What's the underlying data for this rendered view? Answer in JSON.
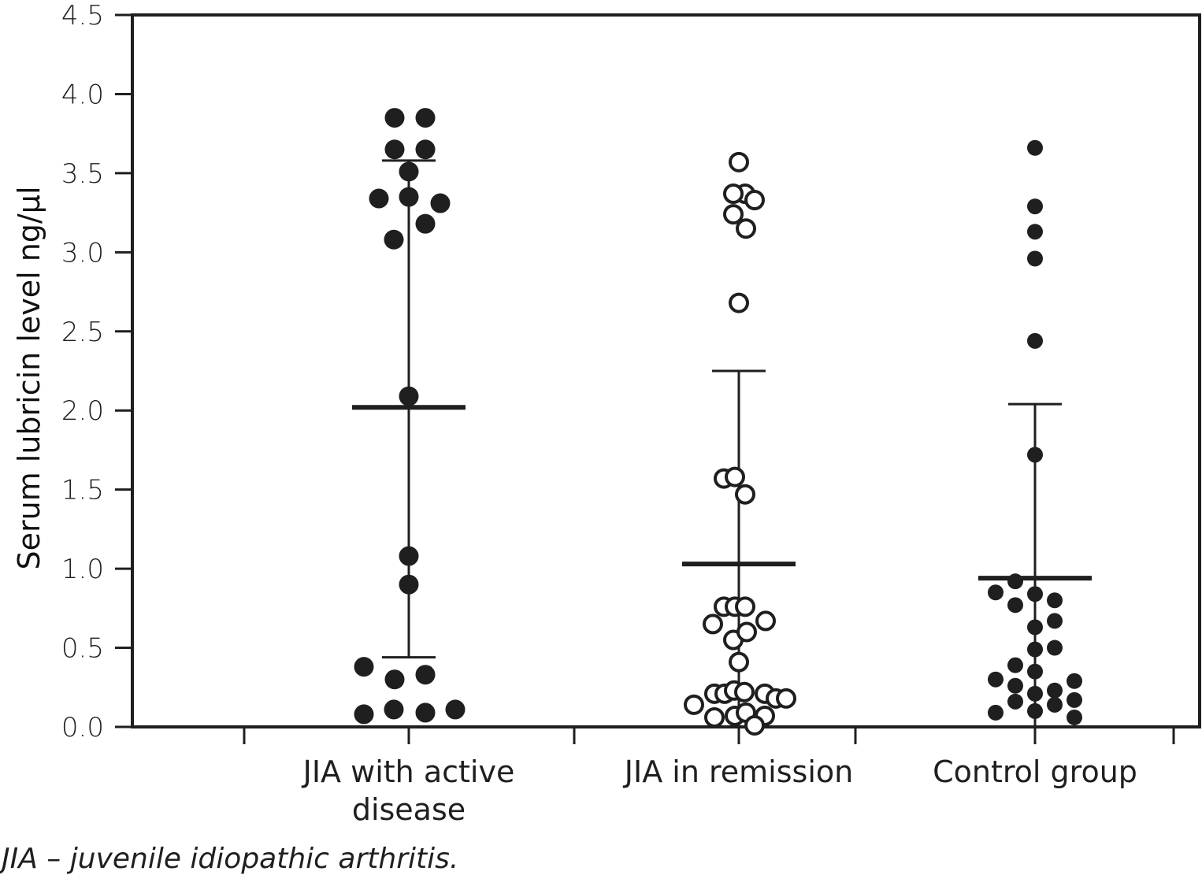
{
  "chart_data": {
    "type": "scatter",
    "subtype": "dot-plot with mean and SD bars",
    "ylabel": "Serum lubricin level ng/µl",
    "ylim": [
      0.0,
      4.5
    ],
    "yticks": [
      "0.0",
      "0.5",
      "1.0",
      "1.5",
      "2.0",
      "2.5",
      "3.0",
      "3.5",
      "4.0",
      "4.5"
    ],
    "categories": [
      "JIA with active disease",
      "JIA in remission",
      "Control group"
    ],
    "category_label_lines": [
      [
        "JIA with active",
        "disease"
      ],
      [
        "JIA in remission"
      ],
      [
        "Control group"
      ]
    ],
    "grid": false,
    "colors": {
      "ink": "#1f1f1f",
      "open_fill": "#ffffff"
    },
    "series": [
      {
        "name": "JIA with active disease",
        "marker": "filled-circle",
        "mean": 2.02,
        "sd_upper": 3.58,
        "sd_lower": 0.44,
        "values": [
          3.85,
          3.85,
          3.65,
          3.65,
          3.51,
          3.34,
          3.35,
          3.31,
          3.18,
          3.08,
          2.09,
          1.08,
          0.9,
          0.38,
          0.3,
          0.33,
          0.08,
          0.11,
          0.09,
          0.11
        ]
      },
      {
        "name": "JIA in remission",
        "marker": "open-circle",
        "mean": 1.03,
        "sd_upper": 2.25,
        "sd_lower": null,
        "values": [
          3.57,
          3.37,
          3.37,
          3.33,
          3.24,
          3.15,
          2.68,
          1.57,
          1.58,
          1.47,
          0.76,
          0.76,
          0.76,
          0.65,
          0.67,
          0.55,
          0.6,
          0.41,
          0.14,
          0.21,
          0.21,
          0.23,
          0.22,
          0.21,
          0.18,
          0.18,
          0.06,
          0.07,
          0.09,
          0.07,
          0.01
        ]
      },
      {
        "name": "Control group",
        "marker": "filled-circle",
        "mean": 0.94,
        "sd_upper": 2.04,
        "sd_lower": null,
        "values": [
          3.66,
          3.29,
          3.13,
          2.96,
          2.44,
          1.72,
          0.92,
          0.85,
          0.84,
          0.8,
          0.77,
          0.63,
          0.67,
          0.49,
          0.5,
          0.39,
          0.3,
          0.35,
          0.26,
          0.21,
          0.23,
          0.29,
          0.09,
          0.16,
          0.1,
          0.14,
          0.17,
          0.06
        ]
      }
    ]
  },
  "footnote": "JIA – juvenile idiopathic arthritis."
}
